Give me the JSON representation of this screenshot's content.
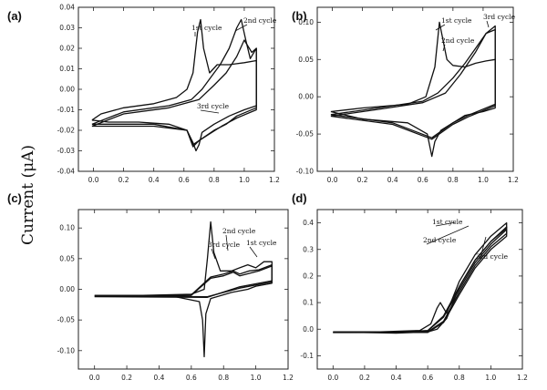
{
  "figure": {
    "y_axis_label": "Current (μA)"
  },
  "chart_data": [
    {
      "panel": "(a)",
      "type": "line",
      "xlim": [
        -0.1,
        1.2
      ],
      "ylim": [
        -0.04,
        0.04
      ],
      "xticks": [
        "0.0",
        "0.2",
        "0.4",
        "0.6",
        "0.8",
        "1.0",
        "1.2"
      ],
      "xtick_values": [
        0.0,
        0.2,
        0.4,
        0.6,
        0.8,
        1.0,
        1.2
      ],
      "yticks": [
        "-0.04",
        "-0.03",
        "-0.02",
        "-0.01",
        "0.00",
        "0.01",
        "0.02",
        "0.03",
        "0.04"
      ],
      "ytick_values": [
        -0.04,
        -0.03,
        -0.02,
        -0.01,
        0.0,
        0.01,
        0.02,
        0.03,
        0.04
      ],
      "series": [
        {
          "name": "1st cycle",
          "x": [
            -0.01,
            0.05,
            0.2,
            0.4,
            0.55,
            0.62,
            0.66,
            0.69,
            0.71,
            0.73,
            0.77,
            0.82,
            0.9,
            1.0,
            1.08,
            1.08,
            1.0,
            0.9,
            0.8,
            0.72,
            0.7,
            0.68,
            0.66,
            0.62,
            0.5,
            0.3,
            0.1,
            -0.01
          ],
          "y": [
            -0.015,
            -0.012,
            -0.009,
            -0.007,
            -0.004,
            0.0,
            0.008,
            0.028,
            0.034,
            0.02,
            0.008,
            0.012,
            0.012,
            0.013,
            0.014,
            -0.008,
            -0.01,
            -0.013,
            -0.017,
            -0.021,
            -0.027,
            -0.03,
            -0.026,
            -0.02,
            -0.017,
            -0.016,
            -0.016,
            -0.015
          ]
        },
        {
          "name": "2nd cycle",
          "x": [
            -0.01,
            0.2,
            0.5,
            0.65,
            0.72,
            0.78,
            0.84,
            0.9,
            0.95,
            0.98,
            1.01,
            1.04,
            1.08,
            1.08,
            0.95,
            0.88,
            0.8,
            0.7,
            0.66,
            0.62,
            0.4,
            0.1,
            -0.01
          ],
          "y": [
            -0.017,
            -0.011,
            -0.008,
            -0.005,
            0.0,
            0.006,
            0.012,
            0.02,
            0.03,
            0.034,
            0.024,
            0.015,
            0.02,
            -0.009,
            -0.013,
            -0.017,
            -0.02,
            -0.025,
            -0.028,
            -0.02,
            -0.017,
            -0.017,
            -0.017
          ]
        },
        {
          "name": "3rd cycle",
          "x": [
            -0.01,
            0.2,
            0.5,
            0.7,
            0.8,
            0.88,
            0.95,
            1.0,
            1.05,
            1.08,
            1.08,
            0.95,
            0.85,
            0.7,
            0.66,
            0.62,
            0.4,
            0.1,
            -0.01
          ],
          "y": [
            -0.018,
            -0.012,
            -0.009,
            -0.005,
            0.002,
            0.008,
            0.016,
            0.024,
            0.018,
            0.02,
            -0.01,
            -0.014,
            -0.018,
            -0.025,
            -0.027,
            -0.02,
            -0.018,
            -0.018,
            -0.018
          ]
        }
      ],
      "annotations": [
        "1st cycle",
        "2nd cycle",
        "3rd cycle"
      ]
    },
    {
      "panel": "(b)",
      "type": "line",
      "xlim": [
        -0.1,
        1.2
      ],
      "ylim": [
        -0.1,
        0.12
      ],
      "xticks": [
        "0.0",
        "0.2",
        "0.4",
        "0.6",
        "0.8",
        "1.0",
        "1.2"
      ],
      "xtick_values": [
        0.0,
        0.2,
        0.4,
        0.6,
        0.8,
        1.0,
        1.2
      ],
      "yticks": [
        "-0.10",
        "-0.05",
        "0.00",
        "0.05",
        "0.10"
      ],
      "ytick_values": [
        -0.1,
        -0.05,
        0.0,
        0.05,
        0.1
      ],
      "series": [
        {
          "name": "1st cycle",
          "x": [
            -0.01,
            0.2,
            0.5,
            0.62,
            0.68,
            0.71,
            0.73,
            0.76,
            0.8,
            0.88,
            0.95,
            1.02,
            1.08,
            1.08,
            1.0,
            0.88,
            0.8,
            0.72,
            0.68,
            0.66,
            0.63,
            0.5,
            0.2,
            -0.01
          ],
          "y": [
            -0.02,
            -0.015,
            -0.01,
            0.0,
            0.04,
            0.1,
            0.08,
            0.05,
            0.042,
            0.04,
            0.045,
            0.048,
            0.05,
            -0.015,
            -0.02,
            -0.025,
            -0.035,
            -0.045,
            -0.06,
            -0.08,
            -0.05,
            -0.035,
            -0.03,
            -0.02
          ]
        },
        {
          "name": "2nd cycle",
          "x": [
            -0.01,
            0.3,
            0.6,
            0.7,
            0.8,
            0.88,
            0.95,
            1.02,
            1.08,
            1.08,
            0.9,
            0.8,
            0.66,
            0.4,
            -0.01
          ],
          "y": [
            -0.024,
            -0.015,
            -0.006,
            0.005,
            0.025,
            0.045,
            0.065,
            0.085,
            0.09,
            -0.01,
            -0.025,
            -0.035,
            -0.055,
            -0.035,
            -0.024
          ]
        },
        {
          "name": "3rd cycle",
          "x": [
            -0.01,
            0.3,
            0.6,
            0.75,
            0.85,
            0.95,
            1.02,
            1.08,
            1.08,
            0.9,
            0.8,
            0.66,
            0.4,
            -0.01
          ],
          "y": [
            -0.026,
            -0.017,
            -0.008,
            0.005,
            0.03,
            0.06,
            0.085,
            0.095,
            -0.012,
            -0.027,
            -0.037,
            -0.057,
            -0.037,
            -0.026
          ]
        }
      ],
      "annotations": [
        "1st cycle",
        "2nd cycle",
        "3rd cycle"
      ]
    },
    {
      "panel": "(c)",
      "type": "line",
      "xlim": [
        -0.1,
        1.2
      ],
      "ylim": [
        -0.13,
        0.13
      ],
      "xticks": [
        "0.0",
        "0.2",
        "0.4",
        "0.6",
        "0.8",
        "1.0",
        "1.2"
      ],
      "xtick_values": [
        0.0,
        0.2,
        0.4,
        0.6,
        0.8,
        1.0,
        1.2
      ],
      "yticks": [
        "-0.10",
        "-0.05",
        "0.00",
        "0.05",
        "0.10"
      ],
      "ytick_values": [
        -0.1,
        -0.05,
        0.0,
        0.05,
        0.1
      ],
      "series": [
        {
          "name": "1st cycle",
          "x": [
            0.0,
            0.3,
            0.6,
            0.68,
            0.7,
            0.72,
            0.74,
            0.78,
            0.85,
            0.9,
            0.95,
            1.0,
            1.05,
            1.1,
            1.1,
            1.0,
            0.95,
            0.85,
            0.72,
            0.69,
            0.68,
            0.67,
            0.65,
            0.5,
            0.2,
            0.0
          ],
          "y": [
            -0.01,
            -0.01,
            -0.008,
            0.0,
            0.05,
            0.11,
            0.06,
            0.03,
            0.03,
            0.035,
            0.04,
            0.035,
            0.045,
            0.045,
            0.01,
            0.005,
            0.0,
            -0.005,
            -0.015,
            -0.04,
            -0.11,
            -0.05,
            -0.02,
            -0.012,
            -0.01,
            -0.01
          ]
        },
        {
          "name": "2nd cycle",
          "x": [
            0.0,
            0.6,
            0.72,
            0.8,
            0.86,
            0.9,
            0.96,
            1.02,
            1.1,
            1.1,
            0.9,
            0.7,
            0.0
          ],
          "y": [
            -0.011,
            -0.009,
            0.02,
            0.025,
            0.03,
            0.025,
            0.03,
            0.032,
            0.04,
            0.012,
            0.002,
            -0.012,
            -0.011
          ]
        },
        {
          "name": "3rd cycle",
          "x": [
            0.0,
            0.6,
            0.72,
            0.8,
            0.86,
            0.9,
            0.96,
            1.02,
            1.1,
            1.1,
            0.9,
            0.7,
            0.0
          ],
          "y": [
            -0.012,
            -0.01,
            0.018,
            0.022,
            0.028,
            0.022,
            0.026,
            0.03,
            0.038,
            0.014,
            0.004,
            -0.013,
            -0.012
          ]
        }
      ],
      "annotations": [
        "2nd cycle",
        "3rd cycle",
        "1st cycle"
      ]
    },
    {
      "panel": "(d)",
      "type": "line",
      "xlim": [
        -0.1,
        1.2
      ],
      "ylim": [
        -0.15,
        0.45
      ],
      "xticks": [
        "0.0",
        "0.2",
        "0.4",
        "0.6",
        "0.8",
        "1.0",
        "1.2"
      ],
      "xtick_values": [
        0.0,
        0.2,
        0.4,
        0.6,
        0.8,
        1.0,
        1.2
      ],
      "yticks": [
        "-0.1",
        "0.0",
        "0.1",
        "0.2",
        "0.3",
        "0.4"
      ],
      "ytick_values": [
        -0.1,
        0.0,
        0.1,
        0.2,
        0.3,
        0.4
      ],
      "series": [
        {
          "name": "1st cycle",
          "x": [
            0.0,
            0.3,
            0.55,
            0.62,
            0.66,
            0.68,
            0.72,
            0.8,
            0.9,
            1.0,
            1.1,
            1.1,
            1.0,
            0.9,
            0.8,
            0.72,
            0.66,
            0.6,
            0.4,
            0.0
          ],
          "y": [
            -0.01,
            -0.01,
            -0.005,
            0.02,
            0.08,
            0.1,
            0.06,
            0.18,
            0.28,
            0.35,
            0.4,
            0.38,
            0.33,
            0.26,
            0.16,
            0.04,
            0.0,
            -0.01,
            -0.015,
            -0.01
          ]
        },
        {
          "name": "2nd cycle",
          "x": [
            0.0,
            0.4,
            0.6,
            0.7,
            0.8,
            0.9,
            1.0,
            1.1,
            1.1,
            1.0,
            0.9,
            0.8,
            0.7,
            0.6,
            0.0
          ],
          "y": [
            -0.012,
            -0.012,
            -0.005,
            0.05,
            0.16,
            0.26,
            0.33,
            0.385,
            0.36,
            0.31,
            0.24,
            0.14,
            0.03,
            -0.01,
            -0.012
          ]
        },
        {
          "name": "3rd cycle",
          "x": [
            0.0,
            0.4,
            0.6,
            0.7,
            0.8,
            0.9,
            1.0,
            1.1,
            1.1,
            1.0,
            0.9,
            0.8,
            0.7,
            0.6,
            0.0
          ],
          "y": [
            -0.013,
            -0.013,
            -0.006,
            0.045,
            0.15,
            0.25,
            0.32,
            0.375,
            0.35,
            0.3,
            0.23,
            0.13,
            0.025,
            -0.012,
            -0.013
          ]
        }
      ],
      "annotations": [
        "1st cycle",
        "2nd cycle",
        "3rd cycle"
      ]
    }
  ]
}
